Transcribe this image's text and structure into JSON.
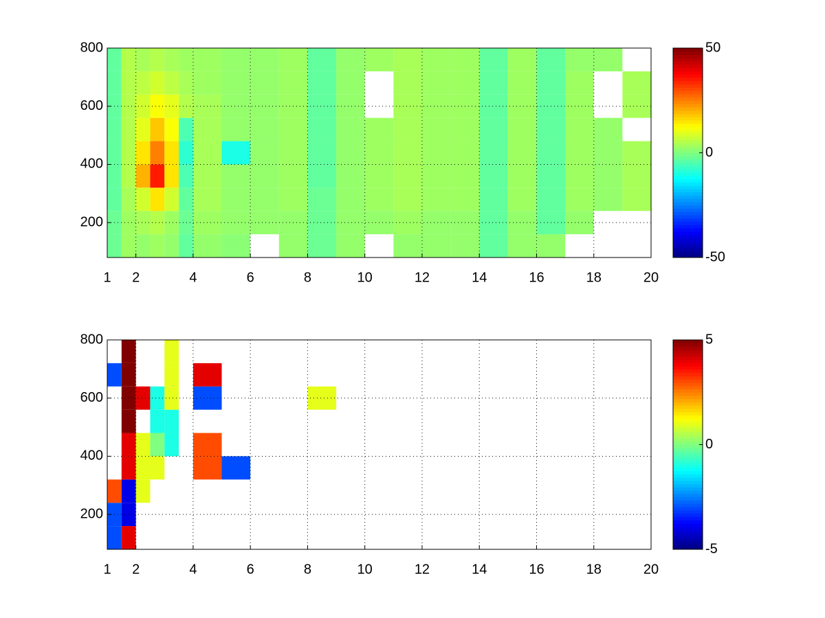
{
  "chart_data": [
    {
      "type": "heatmap",
      "colormap": "jet",
      "grid": true,
      "xlim": [
        1,
        20
      ],
      "ylim": [
        80,
        800
      ],
      "xticks": [
        1,
        2,
        4,
        6,
        8,
        10,
        12,
        14,
        16,
        18,
        20
      ],
      "yticks": [
        200,
        400,
        600,
        800
      ],
      "x": [
        1,
        1.5,
        2,
        2.5,
        3,
        3.5,
        4,
        5,
        6,
        7,
        8,
        9,
        10,
        11,
        12,
        13,
        14,
        15,
        16,
        17,
        18,
        19,
        20
      ],
      "y": [
        80,
        160,
        240,
        320,
        400,
        480,
        560,
        640,
        720,
        800
      ],
      "clim": [
        -50,
        50
      ],
      "cticks": [
        -50,
        0,
        50
      ],
      "values": [
        [
          -2,
          3,
          2,
          3,
          2,
          -3,
          2,
          1,
          null,
          2,
          -2,
          2,
          null,
          2,
          2,
          2,
          -3,
          2,
          2,
          null,
          null,
          null
        ],
        [
          -2,
          3,
          4,
          5,
          3,
          -2,
          3,
          2,
          2,
          2,
          -2,
          2,
          2,
          3,
          2,
          2,
          -3,
          2,
          -3,
          2,
          null,
          null
        ],
        [
          -3,
          4,
          8,
          15,
          8,
          -3,
          4,
          2,
          2,
          3,
          -2,
          2,
          3,
          4,
          3,
          3,
          -3,
          3,
          -3,
          3,
          2,
          4
        ],
        [
          -3,
          5,
          20,
          35,
          15,
          -5,
          4,
          2,
          2,
          3,
          -3,
          2,
          3,
          4,
          3,
          3,
          -3,
          3,
          -3,
          3,
          2,
          4
        ],
        [
          -3,
          5,
          15,
          25,
          15,
          -8,
          4,
          -10,
          2,
          3,
          -3,
          2,
          3,
          4,
          3,
          3,
          -3,
          3,
          -3,
          3,
          2,
          4
        ],
        [
          -3,
          5,
          10,
          18,
          12,
          -5,
          4,
          2,
          2,
          3,
          -3,
          2,
          3,
          4,
          3,
          3,
          -3,
          3,
          -3,
          3,
          2,
          null
        ],
        [
          -3,
          5,
          8,
          12,
          10,
          5,
          4,
          2,
          2,
          3,
          -3,
          2,
          null,
          4,
          3,
          3,
          -3,
          3,
          -3,
          3,
          null,
          4
        ],
        [
          -3,
          5,
          6,
          8,
          6,
          4,
          3,
          2,
          2,
          3,
          -3,
          2,
          null,
          4,
          3,
          3,
          -3,
          3,
          -3,
          3,
          null,
          4
        ],
        [
          -3,
          5,
          4,
          5,
          4,
          3,
          3,
          2,
          2,
          3,
          -3,
          2,
          3,
          4,
          3,
          3,
          -3,
          3,
          -3,
          2,
          2,
          null
        ]
      ]
    },
    {
      "type": "heatmap",
      "colormap": "jet",
      "grid": true,
      "xlim": [
        1,
        20
      ],
      "ylim": [
        80,
        800
      ],
      "xticks": [
        1,
        2,
        4,
        6,
        8,
        10,
        12,
        14,
        16,
        18,
        20
      ],
      "yticks": [
        200,
        400,
        600,
        800
      ],
      "x": [
        1,
        1.5,
        2,
        2.5,
        3,
        3.5,
        4,
        5,
        6,
        7,
        8,
        9,
        10,
        11,
        12,
        13,
        14,
        15,
        16,
        17,
        18,
        19,
        20
      ],
      "y": [
        80,
        160,
        240,
        320,
        400,
        480,
        560,
        640,
        720,
        800
      ],
      "clim": [
        -5,
        5
      ],
      "cticks": [
        -5,
        0,
        5
      ],
      "values": [
        [
          -3,
          4,
          null,
          null,
          null,
          null,
          null,
          null,
          null,
          null,
          null,
          null,
          null,
          null,
          null,
          null,
          null,
          null,
          null,
          null,
          null,
          null
        ],
        [
          -3,
          -4,
          null,
          null,
          null,
          null,
          null,
          null,
          null,
          null,
          null,
          null,
          null,
          null,
          null,
          null,
          null,
          null,
          null,
          null,
          null,
          null
        ],
        [
          3,
          -4,
          1,
          null,
          null,
          null,
          null,
          null,
          null,
          null,
          null,
          null,
          null,
          null,
          null,
          null,
          null,
          null,
          null,
          null,
          null,
          null
        ],
        [
          null,
          4,
          1,
          1,
          null,
          null,
          3,
          -3,
          null,
          null,
          null,
          null,
          null,
          null,
          null,
          null,
          null,
          null,
          null,
          null,
          null,
          null
        ],
        [
          null,
          4,
          1,
          0,
          -1,
          null,
          3,
          null,
          null,
          null,
          null,
          null,
          null,
          null,
          null,
          null,
          null,
          null,
          null,
          null,
          null,
          null
        ],
        [
          null,
          5,
          null,
          -1,
          -1,
          null,
          null,
          null,
          null,
          null,
          null,
          null,
          null,
          null,
          null,
          null,
          null,
          null,
          null,
          null,
          null,
          null
        ],
        [
          null,
          5,
          4,
          -1,
          1,
          null,
          -3,
          null,
          null,
          null,
          1,
          null,
          null,
          null,
          null,
          null,
          null,
          null,
          null,
          null,
          null,
          null
        ],
        [
          -3,
          5,
          null,
          null,
          1,
          null,
          4,
          null,
          null,
          null,
          null,
          null,
          null,
          null,
          null,
          null,
          null,
          null,
          null,
          null,
          null,
          null
        ],
        [
          null,
          5,
          null,
          null,
          1,
          null,
          null,
          null,
          null,
          null,
          null,
          null,
          null,
          null,
          null,
          null,
          null,
          null,
          null,
          null,
          null,
          null
        ]
      ]
    }
  ]
}
